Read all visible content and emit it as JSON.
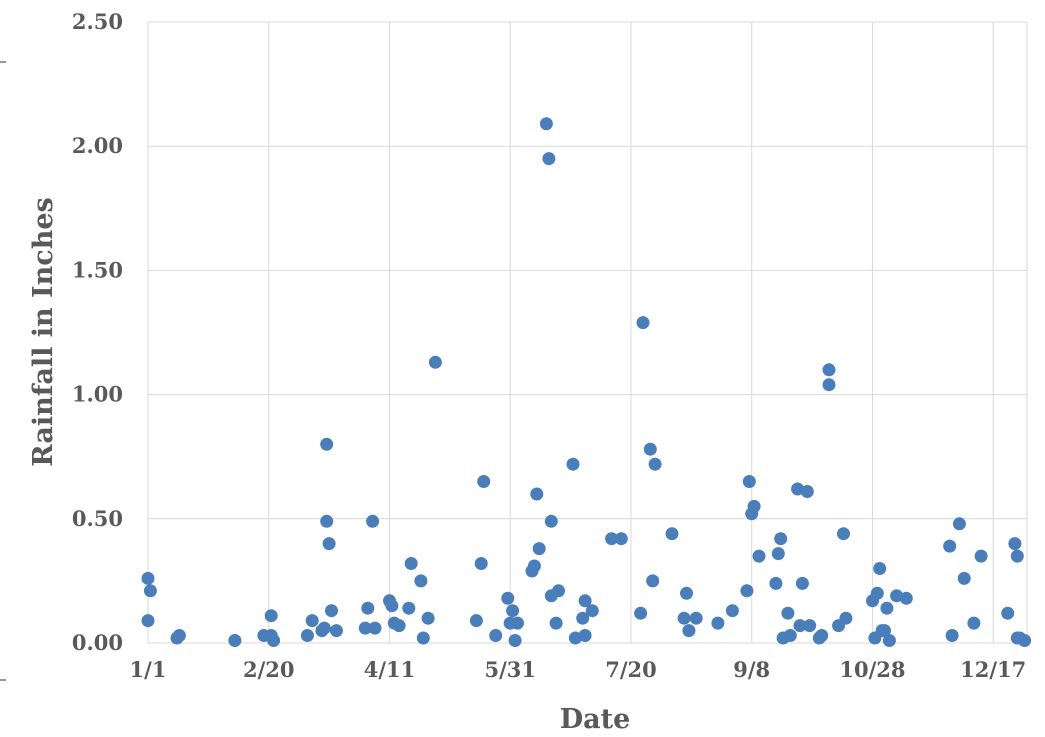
{
  "chart_data": {
    "type": "scatter",
    "xlabel": "Date",
    "ylabel": "Rainfall in Inches",
    "x_ticks": [
      "1/1",
      "2/20",
      "4/11",
      "5/31",
      "7/20",
      "9/8",
      "10/28",
      "12/17"
    ],
    "y_ticks": [
      "0.00",
      "0.50",
      "1.00",
      "1.50",
      "2.00",
      "2.50"
    ],
    "xlim": [
      "1/1",
      "12/31"
    ],
    "ylim": [
      0,
      2.5
    ],
    "grid": true,
    "legend": "none",
    "colors": {
      "points": "#4a7ebb",
      "grid": "#d9d9d9",
      "text": "#595959"
    },
    "points": [
      {
        "x": "1/1",
        "y": 0.26
      },
      {
        "x": "1/1",
        "y": 0.09
      },
      {
        "x": "1/2",
        "y": 0.21
      },
      {
        "x": "1/13",
        "y": 0.02
      },
      {
        "x": "1/14",
        "y": 0.03
      },
      {
        "x": "2/6",
        "y": 0.01
      },
      {
        "x": "2/18",
        "y": 0.03
      },
      {
        "x": "2/21",
        "y": 0.11
      },
      {
        "x": "2/21",
        "y": 0.03
      },
      {
        "x": "2/22",
        "y": 0.01
      },
      {
        "x": "3/8",
        "y": 0.03
      },
      {
        "x": "3/10",
        "y": 0.09
      },
      {
        "x": "3/14",
        "y": 0.05
      },
      {
        "x": "3/15",
        "y": 0.06
      },
      {
        "x": "3/16",
        "y": 0.49
      },
      {
        "x": "3/16",
        "y": 0.8
      },
      {
        "x": "3/17",
        "y": 0.4
      },
      {
        "x": "3/18",
        "y": 0.13
      },
      {
        "x": "3/20",
        "y": 0.05
      },
      {
        "x": "4/1",
        "y": 0.06
      },
      {
        "x": "4/2",
        "y": 0.14
      },
      {
        "x": "4/4",
        "y": 0.49
      },
      {
        "x": "4/5",
        "y": 0.06
      },
      {
        "x": "4/11",
        "y": 0.17
      },
      {
        "x": "4/12",
        "y": 0.15
      },
      {
        "x": "4/13",
        "y": 0.08
      },
      {
        "x": "4/15",
        "y": 0.07
      },
      {
        "x": "4/19",
        "y": 0.14
      },
      {
        "x": "4/20",
        "y": 0.32
      },
      {
        "x": "4/24",
        "y": 0.25
      },
      {
        "x": "4/25",
        "y": 0.02
      },
      {
        "x": "4/27",
        "y": 0.1
      },
      {
        "x": "4/30",
        "y": 1.13
      },
      {
        "x": "5/17",
        "y": 0.09
      },
      {
        "x": "5/19",
        "y": 0.32
      },
      {
        "x": "5/20",
        "y": 0.65
      },
      {
        "x": "5/25",
        "y": 0.03
      },
      {
        "x": "5/30",
        "y": 0.18
      },
      {
        "x": "5/31",
        "y": 0.08
      },
      {
        "x": "6/1",
        "y": 0.13
      },
      {
        "x": "6/2",
        "y": 0.01
      },
      {
        "x": "6/3",
        "y": 0.08
      },
      {
        "x": "6/9",
        "y": 0.29
      },
      {
        "x": "6/10",
        "y": 0.31
      },
      {
        "x": "6/11",
        "y": 0.6
      },
      {
        "x": "6/12",
        "y": 0.38
      },
      {
        "x": "6/15",
        "y": 2.09
      },
      {
        "x": "6/16",
        "y": 1.95
      },
      {
        "x": "6/17",
        "y": 0.49
      },
      {
        "x": "6/17",
        "y": 0.19
      },
      {
        "x": "6/19",
        "y": 0.08
      },
      {
        "x": "6/20",
        "y": 0.21
      },
      {
        "x": "6/26",
        "y": 0.72
      },
      {
        "x": "6/27",
        "y": 0.02
      },
      {
        "x": "6/30",
        "y": 0.1
      },
      {
        "x": "7/1",
        "y": 0.03
      },
      {
        "x": "7/1",
        "y": 0.17
      },
      {
        "x": "7/4",
        "y": 0.13
      },
      {
        "x": "7/12",
        "y": 0.42
      },
      {
        "x": "7/16",
        "y": 0.42
      },
      {
        "x": "7/24",
        "y": 0.12
      },
      {
        "x": "7/25",
        "y": 1.29
      },
      {
        "x": "7/28",
        "y": 0.78
      },
      {
        "x": "7/29",
        "y": 0.25
      },
      {
        "x": "7/30",
        "y": 0.72
      },
      {
        "x": "8/6",
        "y": 0.44
      },
      {
        "x": "8/11",
        "y": 0.1
      },
      {
        "x": "8/12",
        "y": 0.2
      },
      {
        "x": "8/13",
        "y": 0.05
      },
      {
        "x": "8/16",
        "y": 0.1
      },
      {
        "x": "8/25",
        "y": 0.08
      },
      {
        "x": "8/31",
        "y": 0.13
      },
      {
        "x": "9/6",
        "y": 0.21
      },
      {
        "x": "9/7",
        "y": 0.65
      },
      {
        "x": "9/8",
        "y": 0.52
      },
      {
        "x": "9/9",
        "y": 0.55
      },
      {
        "x": "9/11",
        "y": 0.35
      },
      {
        "x": "9/18",
        "y": 0.24
      },
      {
        "x": "9/19",
        "y": 0.36
      },
      {
        "x": "9/20",
        "y": 0.42
      },
      {
        "x": "9/21",
        "y": 0.02
      },
      {
        "x": "9/23",
        "y": 0.12
      },
      {
        "x": "9/24",
        "y": 0.03
      },
      {
        "x": "9/27",
        "y": 0.62
      },
      {
        "x": "9/28",
        "y": 0.07
      },
      {
        "x": "9/29",
        "y": 0.24
      },
      {
        "x": "10/1",
        "y": 0.61
      },
      {
        "x": "10/2",
        "y": 0.07
      },
      {
        "x": "10/6",
        "y": 0.02
      },
      {
        "x": "10/7",
        "y": 0.03
      },
      {
        "x": "10/10",
        "y": 1.04
      },
      {
        "x": "10/10",
        "y": 1.1
      },
      {
        "x": "10/14",
        "y": 0.07
      },
      {
        "x": "10/16",
        "y": 0.44
      },
      {
        "x": "10/17",
        "y": 0.1
      },
      {
        "x": "10/28",
        "y": 0.17
      },
      {
        "x": "10/29",
        "y": 0.02
      },
      {
        "x": "10/30",
        "y": 0.2
      },
      {
        "x": "10/31",
        "y": 0.3
      },
      {
        "x": "11/1",
        "y": 0.05
      },
      {
        "x": "11/2",
        "y": 0.05
      },
      {
        "x": "11/3",
        "y": 0.14
      },
      {
        "x": "11/4",
        "y": 0.01
      },
      {
        "x": "11/7",
        "y": 0.19
      },
      {
        "x": "11/11",
        "y": 0.18
      },
      {
        "x": "11/29",
        "y": 0.39
      },
      {
        "x": "11/30",
        "y": 0.03
      },
      {
        "x": "12/3",
        "y": 0.48
      },
      {
        "x": "12/5",
        "y": 0.26
      },
      {
        "x": "12/9",
        "y": 0.08
      },
      {
        "x": "12/12",
        "y": 0.35
      },
      {
        "x": "12/23",
        "y": 0.12
      },
      {
        "x": "12/26",
        "y": 0.4
      },
      {
        "x": "12/27",
        "y": 0.02
      },
      {
        "x": "12/27",
        "y": 0.35
      },
      {
        "x": "12/28",
        "y": 0.02
      },
      {
        "x": "12/30",
        "y": 0.01
      }
    ]
  }
}
